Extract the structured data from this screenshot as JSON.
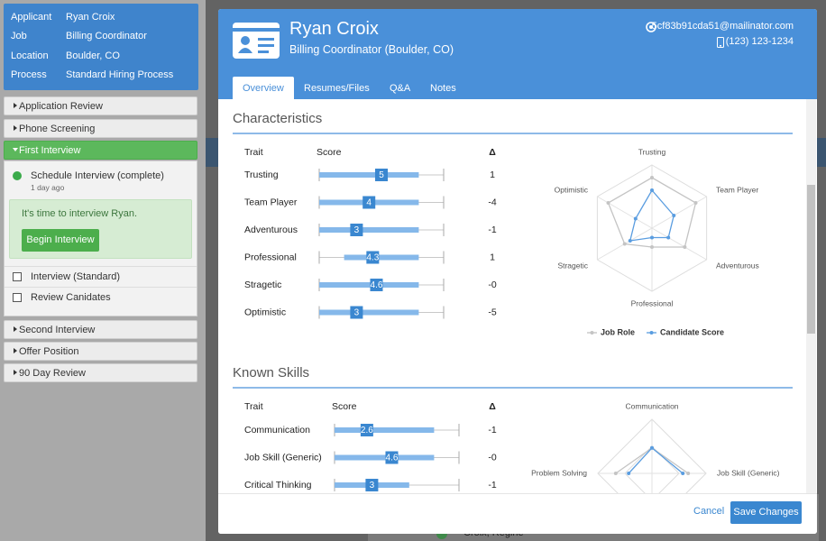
{
  "background": {
    "list_item": "Croix, Regine"
  },
  "sidebar": {
    "info": [
      {
        "label": "Applicant",
        "value": "Ryan Croix"
      },
      {
        "label": "Job",
        "value": "Billing Coordinator"
      },
      {
        "label": "Location",
        "value": "Boulder, CO"
      },
      {
        "label": "Process",
        "value": "Standard Hiring Process"
      }
    ],
    "stages": [
      "Application Review",
      "Phone Screening",
      "First Interview",
      "Second Interview",
      "Offer Position",
      "90 Day Review"
    ],
    "active_stage": 2,
    "done_task": {
      "label": "Schedule Interview (complete)",
      "time": "1 day ago"
    },
    "callout": {
      "text": "It's time to interview Ryan.",
      "button": "Begin Interview"
    },
    "todo": [
      "Interview (Standard)",
      "Review Canidates"
    ]
  },
  "modal": {
    "name": "Ryan Croix",
    "job": "Billing Coordinator (Boulder, CO)",
    "email": "5cf83b91cda51@mailinator.com",
    "phone": "(123) 123-1234",
    "tabs": [
      "Overview",
      "Resumes/Files",
      "Q&A",
      "Notes"
    ],
    "active_tab": 0,
    "sections": [
      {
        "title": "Characteristics",
        "columns": [
          "Trait",
          "Score",
          "Δ"
        ],
        "scale": [
          0,
          10
        ],
        "rows": [
          {
            "trait": "Trusting",
            "range": [
              0,
              8
            ],
            "score": 5,
            "delta": "1"
          },
          {
            "trait": "Team Player",
            "range": [
              0,
              8
            ],
            "score": 4,
            "delta": "-4"
          },
          {
            "trait": "Adventurous",
            "range": [
              0,
              8
            ],
            "score": 3,
            "delta": "-1"
          },
          {
            "trait": "Professional",
            "range": [
              2,
              8
            ],
            "score": 4.3,
            "delta": "1"
          },
          {
            "trait": "Stragetic",
            "range": [
              0,
              8
            ],
            "score": 4.6,
            "delta": "-0"
          },
          {
            "trait": "Optimistic",
            "range": [
              0,
              8
            ],
            "score": 3,
            "delta": "-5"
          }
        ],
        "radar": {
          "axes": [
            "Trusting",
            "Team Player",
            "Adventurous",
            "Professional",
            "Stragetic",
            "Optimistic"
          ],
          "rlim": [
            0,
            10
          ],
          "series": [
            {
              "name": "Job Role",
              "color": "#c4c4c4",
              "values": [
                8,
                8,
                6,
                3,
                5,
                8
              ]
            },
            {
              "name": "Candidate Score",
              "color": "#5a9de0",
              "values": [
                6,
                4,
                3,
                1.5,
                4,
                3
              ]
            }
          ]
        }
      },
      {
        "title": "Known Skills",
        "columns": [
          "Trait",
          "Score",
          "Δ"
        ],
        "scale": [
          0,
          10
        ],
        "rows": [
          {
            "trait": "Communication",
            "range": [
              0,
              8
            ],
            "score": 2.6,
            "delta": "-1"
          },
          {
            "trait": "Job Skill (Generic)",
            "range": [
              0,
              8
            ],
            "score": 4.6,
            "delta": "-0"
          },
          {
            "trait": "Critical Thinking",
            "range": [
              0,
              6
            ],
            "score": 3,
            "delta": "-1"
          }
        ],
        "radar": {
          "axes": [
            "Problem Solving",
            "Communication",
            "Job Skill (Generic)"
          ],
          "rlim": [
            0,
            10
          ],
          "series": [
            {
              "color": "#c4c4c4",
              "values": [
                6.7,
                4.7,
                6.7
              ]
            },
            {
              "color": "#5a9de0",
              "values": [
                4.3,
                4.7,
                5.7
              ]
            }
          ]
        }
      }
    ],
    "footer": {
      "cancel": "Cancel",
      "save": "Save Changes"
    }
  }
}
